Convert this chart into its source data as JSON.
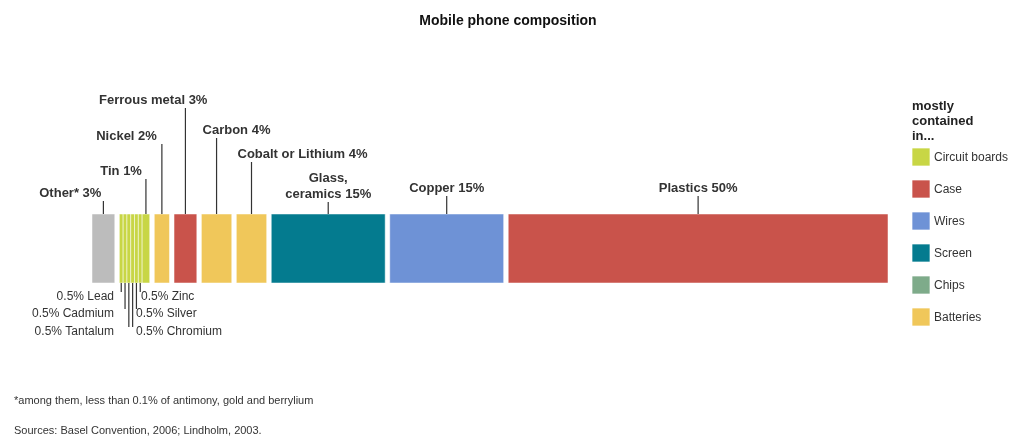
{
  "chart_data": {
    "type": "other",
    "title": "Mobile phone composition",
    "categories": [
      "Other*",
      "Lead",
      "Cadmium",
      "Tantalum",
      "Chromium",
      "Silver",
      "Zinc",
      "Tin",
      "Nickel",
      "Ferrous metal",
      "Carbon",
      "Cobalt or Lithium",
      "Glass, ceramics",
      "Copper",
      "Plastics"
    ],
    "colors": [
      "#bcbcbc",
      "#c8d645",
      "#c8d645",
      "#c8d645",
      "#c8d645",
      "#c8d645",
      "#c8d645",
      "#c8d645",
      "#f0c75a",
      "#c9534b",
      "#f0c75a",
      "#f0c75a",
      "#047b8f",
      "#6e92d6",
      "#c9534b"
    ],
    "legend_title": "mostly contained in...",
    "legend": "right",
    "series": [
      {
        "name": "Circuit boards",
        "color": "#c8d645",
        "values": [
          null,
          0.5,
          0.5,
          0.5,
          0.5,
          0.5,
          0.5,
          1,
          null,
          null,
          null,
          null,
          null,
          null,
          null
        ],
        "value_labels": [
          null,
          "0.5%",
          "0.5%",
          "0.5%",
          "0.5%",
          "0.5%",
          "0.5%",
          "1%",
          null,
          null,
          null,
          null,
          null,
          null,
          null
        ]
      },
      {
        "name": "Case",
        "color": "#c9534b",
        "values": [
          null,
          null,
          null,
          null,
          null,
          null,
          null,
          null,
          null,
          3,
          null,
          null,
          null,
          null,
          50
        ],
        "value_labels": [
          null,
          null,
          null,
          null,
          null,
          null,
          null,
          null,
          null,
          "3%",
          null,
          null,
          null,
          null,
          "50%"
        ]
      },
      {
        "name": "Wires",
        "color": "#6e92d6",
        "values": [
          null,
          null,
          null,
          null,
          null,
          null,
          null,
          null,
          null,
          null,
          null,
          null,
          null,
          15,
          null
        ],
        "value_labels": [
          null,
          null,
          null,
          null,
          null,
          null,
          null,
          null,
          null,
          null,
          null,
          null,
          null,
          "15%",
          null
        ]
      },
      {
        "name": "Screen",
        "color": "#047b8f",
        "values": [
          null,
          null,
          null,
          null,
          null,
          null,
          null,
          null,
          null,
          null,
          null,
          null,
          15,
          null,
          null
        ],
        "value_labels": [
          null,
          null,
          null,
          null,
          null,
          null,
          null,
          null,
          null,
          null,
          null,
          null,
          "15%",
          null,
          null
        ]
      },
      {
        "name": "Chips",
        "color": "#7eab8a",
        "values": [
          null,
          null,
          null,
          null,
          null,
          null,
          null,
          null,
          null,
          null,
          null,
          null,
          null,
          null,
          null
        ]
      },
      {
        "name": "Batteries",
        "color": "#f0c75a",
        "values": [
          null,
          null,
          null,
          null,
          null,
          null,
          null,
          null,
          2,
          null,
          4,
          4,
          null,
          null,
          null
        ],
        "value_labels": [
          null,
          null,
          null,
          null,
          null,
          null,
          null,
          null,
          "2%",
          null,
          "4%",
          "4%",
          null,
          null,
          null
        ]
      },
      {
        "color": "#bcbcbc",
        "values": [
          3,
          null,
          null,
          null,
          null,
          null,
          null,
          null,
          null,
          null,
          null,
          null,
          null,
          null,
          null
        ],
        "value_labels": [
          "3%",
          null,
          null,
          null,
          null,
          null,
          null,
          null,
          null,
          null,
          null,
          null,
          null,
          null,
          null
        ]
      }
    ],
    "annotations": [
      "*among them, less than 0.1% of antimony, gold and berrylium",
      "Sources: Basel Convention, 2006; Lindholm, 2003."
    ]
  }
}
